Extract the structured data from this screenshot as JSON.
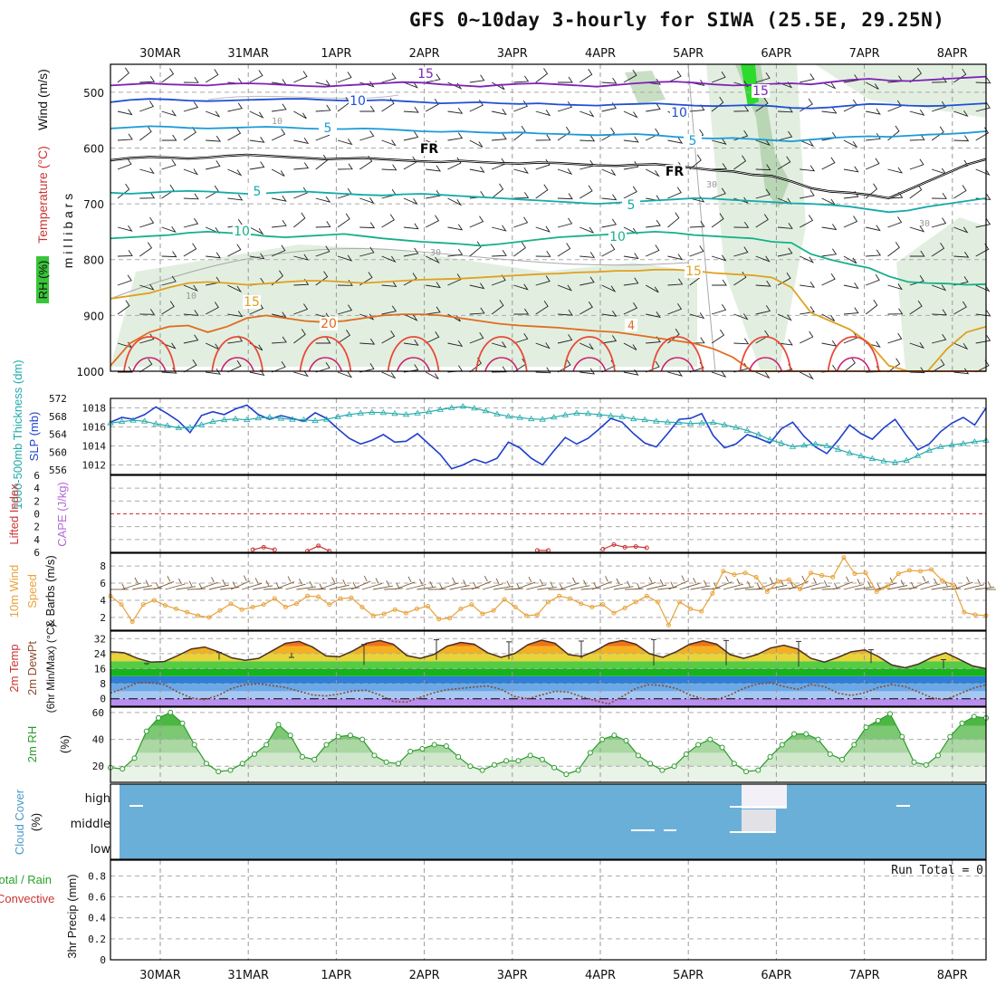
{
  "title": "GFS 0~10day 3-hourly for SIWA (25.5E, 29.25N)",
  "colors": {
    "wind_label": "#000000",
    "temp_label": "#cc3333",
    "rh_label": "#33aa33",
    "slp": "#1f3fcc",
    "thickness": "#22aaaa",
    "lifted": "#cc3333",
    "cape": "#b36ad6",
    "wind10": "#e8a23a",
    "rh2m": "#2b9b2b",
    "cloud": "#6aafd8",
    "rain": "#2aa02a",
    "conv": "#cc3333"
  },
  "chart_data": [
    {
      "type": "heatmap",
      "name": "upper-air cross section",
      "x_dates": [
        "30MAR",
        "31MAR",
        "1APR",
        "2APR",
        "3APR",
        "4APR",
        "5APR",
        "6APR",
        "7APR",
        "8APR"
      ],
      "y_ticks": [
        "500",
        "600",
        "700",
        "800",
        "900",
        "1000"
      ],
      "ylabel": "m i l l i b a r s",
      "side_labels": {
        "wind": "Wind (m/s)",
        "temperature": "Temperature (°C)",
        "rh": "RH (%)"
      },
      "isotherms": [
        {
          "label": "-15",
          "color": "#7e22b8"
        },
        {
          "label": "-10",
          "color": "#1f4fd6"
        },
        {
          "label": "-5",
          "color": "#1a9ad8"
        },
        {
          "label": "FR",
          "color": "#000000"
        },
        {
          "label": "5",
          "color": "#12aaaa"
        },
        {
          "label": "10",
          "color": "#15b088"
        },
        {
          "label": "15",
          "color": "#e0a020"
        },
        {
          "label": "20",
          "color": "#e06c20"
        }
      ],
      "rh_contours": [
        "10",
        "30"
      ]
    },
    {
      "type": "line",
      "name": "thickness and SLP",
      "left_ticks": [
        "572",
        "568",
        "564",
        "560",
        "556"
      ],
      "right_ticks": [
        "1018",
        "1016",
        "1014",
        "1012"
      ],
      "left_label": "1000-500mb Thickness (dm)",
      "right_label": "SLP (mb)",
      "slp": [
        1016.5,
        1017.0,
        1016.8,
        1017.3,
        1018.1,
        1017.4,
        1016.6,
        1015.4,
        1017.2,
        1017.6,
        1017.3,
        1017.9,
        1018.3,
        1017.3,
        1016.8,
        1017.2,
        1016.9,
        1016.6,
        1017.5,
        1016.9,
        1015.8,
        1014.8,
        1014.2,
        1014.6,
        1015.2,
        1014.4,
        1014.5,
        1015.3,
        1014.2,
        1013.1,
        1011.6,
        1012.0,
        1012.6,
        1012.2,
        1012.7,
        1014.4,
        1013.8,
        1012.7,
        1012.0,
        1013.5,
        1014.9,
        1014.2,
        1014.8,
        1015.8,
        1016.9,
        1016.5,
        1015.3,
        1014.3,
        1013.9,
        1015.3,
        1016.8,
        1016.9,
        1017.4,
        1015.1,
        1013.8,
        1014.2,
        1015.2,
        1014.8,
        1014.3,
        1015.8,
        1016.5,
        1015.0,
        1013.9,
        1013.2,
        1014.6,
        1016.2,
        1015.3,
        1014.7,
        1015.9,
        1016.8,
        1015.1,
        1013.6,
        1014.2,
        1015.5,
        1016.4,
        1017.0,
        1016.2,
        1018.0
      ],
      "thickness": [
        566.5,
        566.8,
        567.1,
        566.9,
        566.3,
        565.9,
        565.4,
        565.5,
        566.1,
        566.8,
        567.2,
        567.4,
        567.2,
        567.6,
        567.8,
        567.5,
        567.3,
        567.2,
        567.0,
        567.3,
        567.9,
        568.4,
        568.7,
        568.9,
        568.8,
        568.6,
        568.4,
        568.7,
        569.0,
        569.5,
        569.9,
        570.2,
        569.8,
        569.2,
        568.5,
        568.0,
        567.7,
        567.4,
        567.3,
        567.8,
        568.3,
        568.7,
        568.6,
        568.4,
        568.1,
        567.9,
        567.4,
        567.2,
        566.9,
        566.7,
        566.6,
        566.4,
        566.5,
        566.6,
        566.1,
        565.5,
        564.8,
        563.9,
        562.8,
        562.0,
        561.2,
        561.5,
        561.8,
        561.4,
        560.6,
        559.8,
        559.1,
        558.5,
        558.0,
        557.7,
        558.1,
        559.2,
        560.4,
        561.2,
        561.6,
        561.9,
        562.3,
        562.6
      ]
    },
    {
      "type": "line",
      "name": "lifted index and CAPE",
      "ylabel": "Lifted Index CAPE (J/kg)",
      "y_ticks": [
        "-6",
        "-4",
        "-2",
        "0",
        "2",
        "4",
        "6"
      ],
      "lifted_segments": [
        [
          13,
          14,
          15
        ],
        [
          18,
          19,
          20
        ],
        [
          39,
          40
        ],
        [
          45,
          46,
          47,
          48,
          49
        ]
      ],
      "lifted_values": [
        [
          5.6,
          5.2,
          5.6
        ],
        [
          5.8,
          5.0,
          5.8
        ],
        [
          5.7,
          5.7
        ],
        [
          5.5,
          4.8,
          5.2,
          5.1,
          5.3
        ]
      ]
    },
    {
      "type": "line",
      "name": "10m wind",
      "ylabel": "10m Wind Speed & Barbs (m/s)",
      "y_ticks": [
        "2",
        "4",
        "6",
        "8"
      ],
      "speed": [
        4.5,
        3.5,
        1.5,
        3.5,
        4.0,
        3.4,
        3.0,
        2.6,
        2.2,
        2.0,
        2.8,
        3.6,
        2.9,
        3.2,
        3.5,
        4.2,
        3.2,
        3.6,
        4.5,
        4.4,
        3.5,
        4.2,
        4.3,
        3.2,
        2.2,
        2.4,
        2.9,
        2.5,
        3.0,
        3.3,
        1.8,
        1.9,
        3.0,
        3.5,
        2.4,
        2.8,
        4.1,
        3.2,
        2.2,
        2.3,
        3.8,
        4.5,
        4.2,
        3.6,
        3.2,
        3.5,
        2.5,
        3.1,
        3.8,
        4.5,
        3.8,
        1.1,
        3.8,
        3.0,
        2.7,
        4.8,
        7.4,
        7.0,
        7.2,
        6.7,
        5.0,
        6.2,
        6.4,
        5.3,
        7.2,
        6.9,
        6.7,
        9.0,
        7.1,
        7.2,
        5.0,
        5.6,
        7.1,
        7.5,
        7.4,
        7.6,
        6.3,
        5.8,
        2.6,
        2.3,
        2.2
      ]
    },
    {
      "type": "area",
      "name": "2m temperature and dewpoint",
      "ylabel": "2m Temp 2m DewPt (6hr Min/Max) (°C)",
      "y_ticks": [
        "0",
        "8",
        "16",
        "24",
        "32"
      ],
      "temp": [
        25.0,
        24.5,
        21.5,
        19.5,
        19.8,
        23.0,
        26.5,
        27.5,
        25.0,
        21.8,
        20.5,
        21.5,
        25.5,
        29.5,
        30.5,
        27.5,
        22.8,
        22.3,
        25.5,
        29.5,
        31.0,
        29.0,
        23.0,
        21.5,
        23.5,
        28.0,
        30.0,
        29.0,
        24.5,
        22.0,
        24.0,
        28.8,
        31.2,
        29.5,
        23.5,
        22.5,
        25.5,
        29.5,
        31.0,
        29.0,
        24.0,
        22.0,
        25.0,
        29.0,
        30.8,
        29.0,
        23.5,
        21.5,
        23.5,
        27.0,
        28.5,
        26.5,
        21.5,
        19.5,
        22.0,
        25.0,
        26.0,
        22.5,
        18.0,
        16.5,
        18.5,
        22.0,
        24.5,
        21.0,
        17.5,
        16.0
      ],
      "dewpoint": [
        3.0,
        5.5,
        8.5,
        8.5,
        7.5,
        3.5,
        0.5,
        -0.5,
        1.8,
        5.5,
        7.5,
        8.0,
        7.0,
        6.0,
        4.0,
        2.0,
        1.5,
        2.5,
        4.2,
        4.5,
        2.0,
        -1.5,
        -1.8,
        0.8,
        3.2,
        4.8,
        5.5,
        6.2,
        6.8,
        5.0,
        1.2,
        0.0,
        2.0,
        4.0,
        3.5,
        1.0,
        -1.0,
        -2.8,
        1.2,
        5.5,
        7.5,
        7.0,
        5.5,
        2.0,
        0.0,
        -0.5,
        2.0,
        5.5,
        7.8,
        8.5,
        6.5,
        5.0,
        7.5,
        6.5,
        3.0,
        1.8,
        3.2,
        6.0,
        7.5,
        6.5,
        3.5,
        0.5,
        -0.5,
        2.5,
        5.5,
        7.5
      ],
      "max_marks": [
        18.7,
        24.7,
        22.0,
        28.9,
        31.4,
        30.3,
        30.7,
        31.5,
        31.0,
        30.5,
        26.1,
        20.8
      ],
      "min_marks": [
        18.0,
        20.8,
        24.5,
        18.0,
        20.7,
        21.0,
        21.5,
        17.7,
        17.8,
        17.1,
        19.0,
        16.0
      ]
    },
    {
      "type": "area",
      "name": "2m relative humidity",
      "ylabel": "2m RH (%)",
      "y_ticks": [
        "20",
        "40",
        "60"
      ],
      "rh": [
        19,
        18,
        26,
        46,
        56,
        60,
        52,
        36,
        22,
        16,
        17,
        22,
        29,
        36,
        51,
        43,
        27,
        25,
        36,
        42,
        43,
        40,
        28,
        23,
        22,
        31,
        33,
        36,
        35,
        27,
        20,
        17,
        21,
        24,
        24,
        28,
        25,
        19,
        14,
        17,
        30,
        40,
        43,
        39,
        28,
        22,
        17,
        20,
        29,
        36,
        40,
        34,
        22,
        16,
        17,
        27,
        36,
        44,
        44,
        40,
        29,
        25,
        36,
        49,
        54,
        59,
        42,
        23,
        21,
        28,
        42,
        52,
        57,
        56
      ]
    },
    {
      "type": "heatmap",
      "name": "cloud cover",
      "ylabel": "Cloud Cover (%)",
      "y_ticks": [
        "high",
        "middle",
        "low"
      ]
    },
    {
      "type": "line",
      "name": "3hr precipitation",
      "ylabel": "3hr Precip (mm)",
      "side_label_total": "Total / Rain",
      "side_label_conv": "Convective",
      "y_ticks": [
        "0",
        "0.2",
        "0.4",
        "0.6",
        "0.8"
      ],
      "run_total": "Run Total = 0",
      "values": []
    }
  ]
}
